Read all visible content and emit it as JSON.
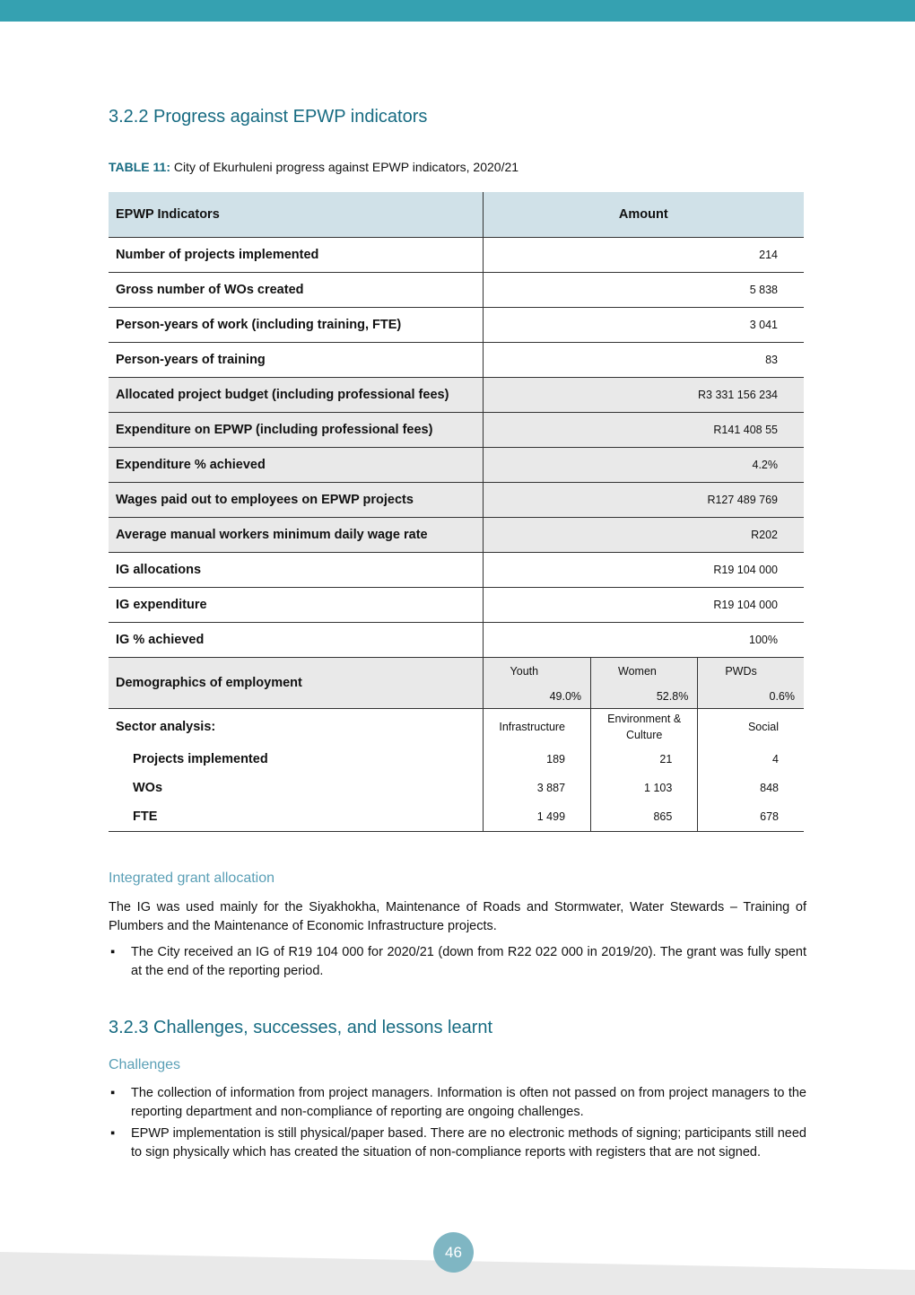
{
  "heading1": "3.2.2 Progress against EPWP indicators",
  "caption": {
    "label": "TABLE 11:",
    "text": "City of Ekurhuleni progress against EPWP indicators, 2020/21"
  },
  "table": {
    "headers": [
      "EPWP Indicators",
      "Amount"
    ],
    "rows": [
      {
        "indicator": "Number of projects implemented",
        "amount": "214"
      },
      {
        "indicator": "Gross number of WOs created",
        "amount": "5 838"
      },
      {
        "indicator": "Person-years of work (including training, FTE)",
        "amount": "3 041"
      },
      {
        "indicator": "Person-years of training",
        "amount": "83"
      },
      {
        "indicator": "Allocated project budget (including professional fees)",
        "amount": "R3 331 156 234"
      },
      {
        "indicator": "Expenditure on EPWP (including professional fees)",
        "amount": "R141 408 55"
      },
      {
        "indicator": "Expenditure % achieved",
        "amount": "4.2%"
      },
      {
        "indicator": "Wages paid out to employees on EPWP projects",
        "amount": "R127 489 769"
      },
      {
        "indicator": "Average manual workers minimum daily wage rate",
        "amount": "R202"
      },
      {
        "indicator": "IG allocations",
        "amount": "R19 104 000"
      },
      {
        "indicator": "IG expenditure",
        "amount": "R19 104 000"
      },
      {
        "indicator": "IG % achieved",
        "amount": "100%"
      }
    ],
    "demographics": {
      "label": "Demographics of employment",
      "groups": [
        {
          "name": "Youth",
          "value": "49.0%"
        },
        {
          "name": "Women",
          "value": "52.8%"
        },
        {
          "name": "PWDs",
          "value": "0.6%"
        }
      ]
    },
    "sector": {
      "label": "Sector analysis:",
      "columns": [
        "Infrastructure",
        "Environment & Culture",
        "Social"
      ],
      "rows": [
        {
          "label": "Projects implemented",
          "values": [
            "189",
            "21",
            "4"
          ]
        },
        {
          "label": "WOs",
          "values": [
            "3 887",
            "1 103",
            "848"
          ]
        },
        {
          "label": "FTE",
          "values": [
            "1 499",
            "865",
            "678"
          ]
        }
      ]
    }
  },
  "section_ig": {
    "title": "Integrated grant allocation",
    "paragraph": "The IG was used mainly for the Siyakhokha, Maintenance of Roads and Stormwater, Water Stewards – Training of Plumbers and the Maintenance of Economic Infrastructure projects.",
    "bullets": [
      "The City received an IG of R19 104 000 for 2020/21 (down from R22 022 000 in 2019/20). The grant was fully spent at the end of the reporting period."
    ]
  },
  "heading2": "3.2.3 Challenges, successes, and lessons learnt",
  "section_challenges": {
    "title": "Challenges",
    "bullets": [
      "The collection of information from project managers. Information is often not passed on from project managers to the reporting department and non-compliance of reporting are ongoing challenges.",
      "EPWP implementation is still physical/paper based. There are no electronic methods of signing; participants still need to sign physically which has created the situation of non-compliance reports with registers that are not signed."
    ]
  },
  "page_number": "46",
  "colors": {
    "accent": "#35a1b1",
    "heading": "#176b82",
    "subheading": "#5a9fb6",
    "table_header": "#d0e1e8",
    "row_gray": "#e9e9e9"
  }
}
